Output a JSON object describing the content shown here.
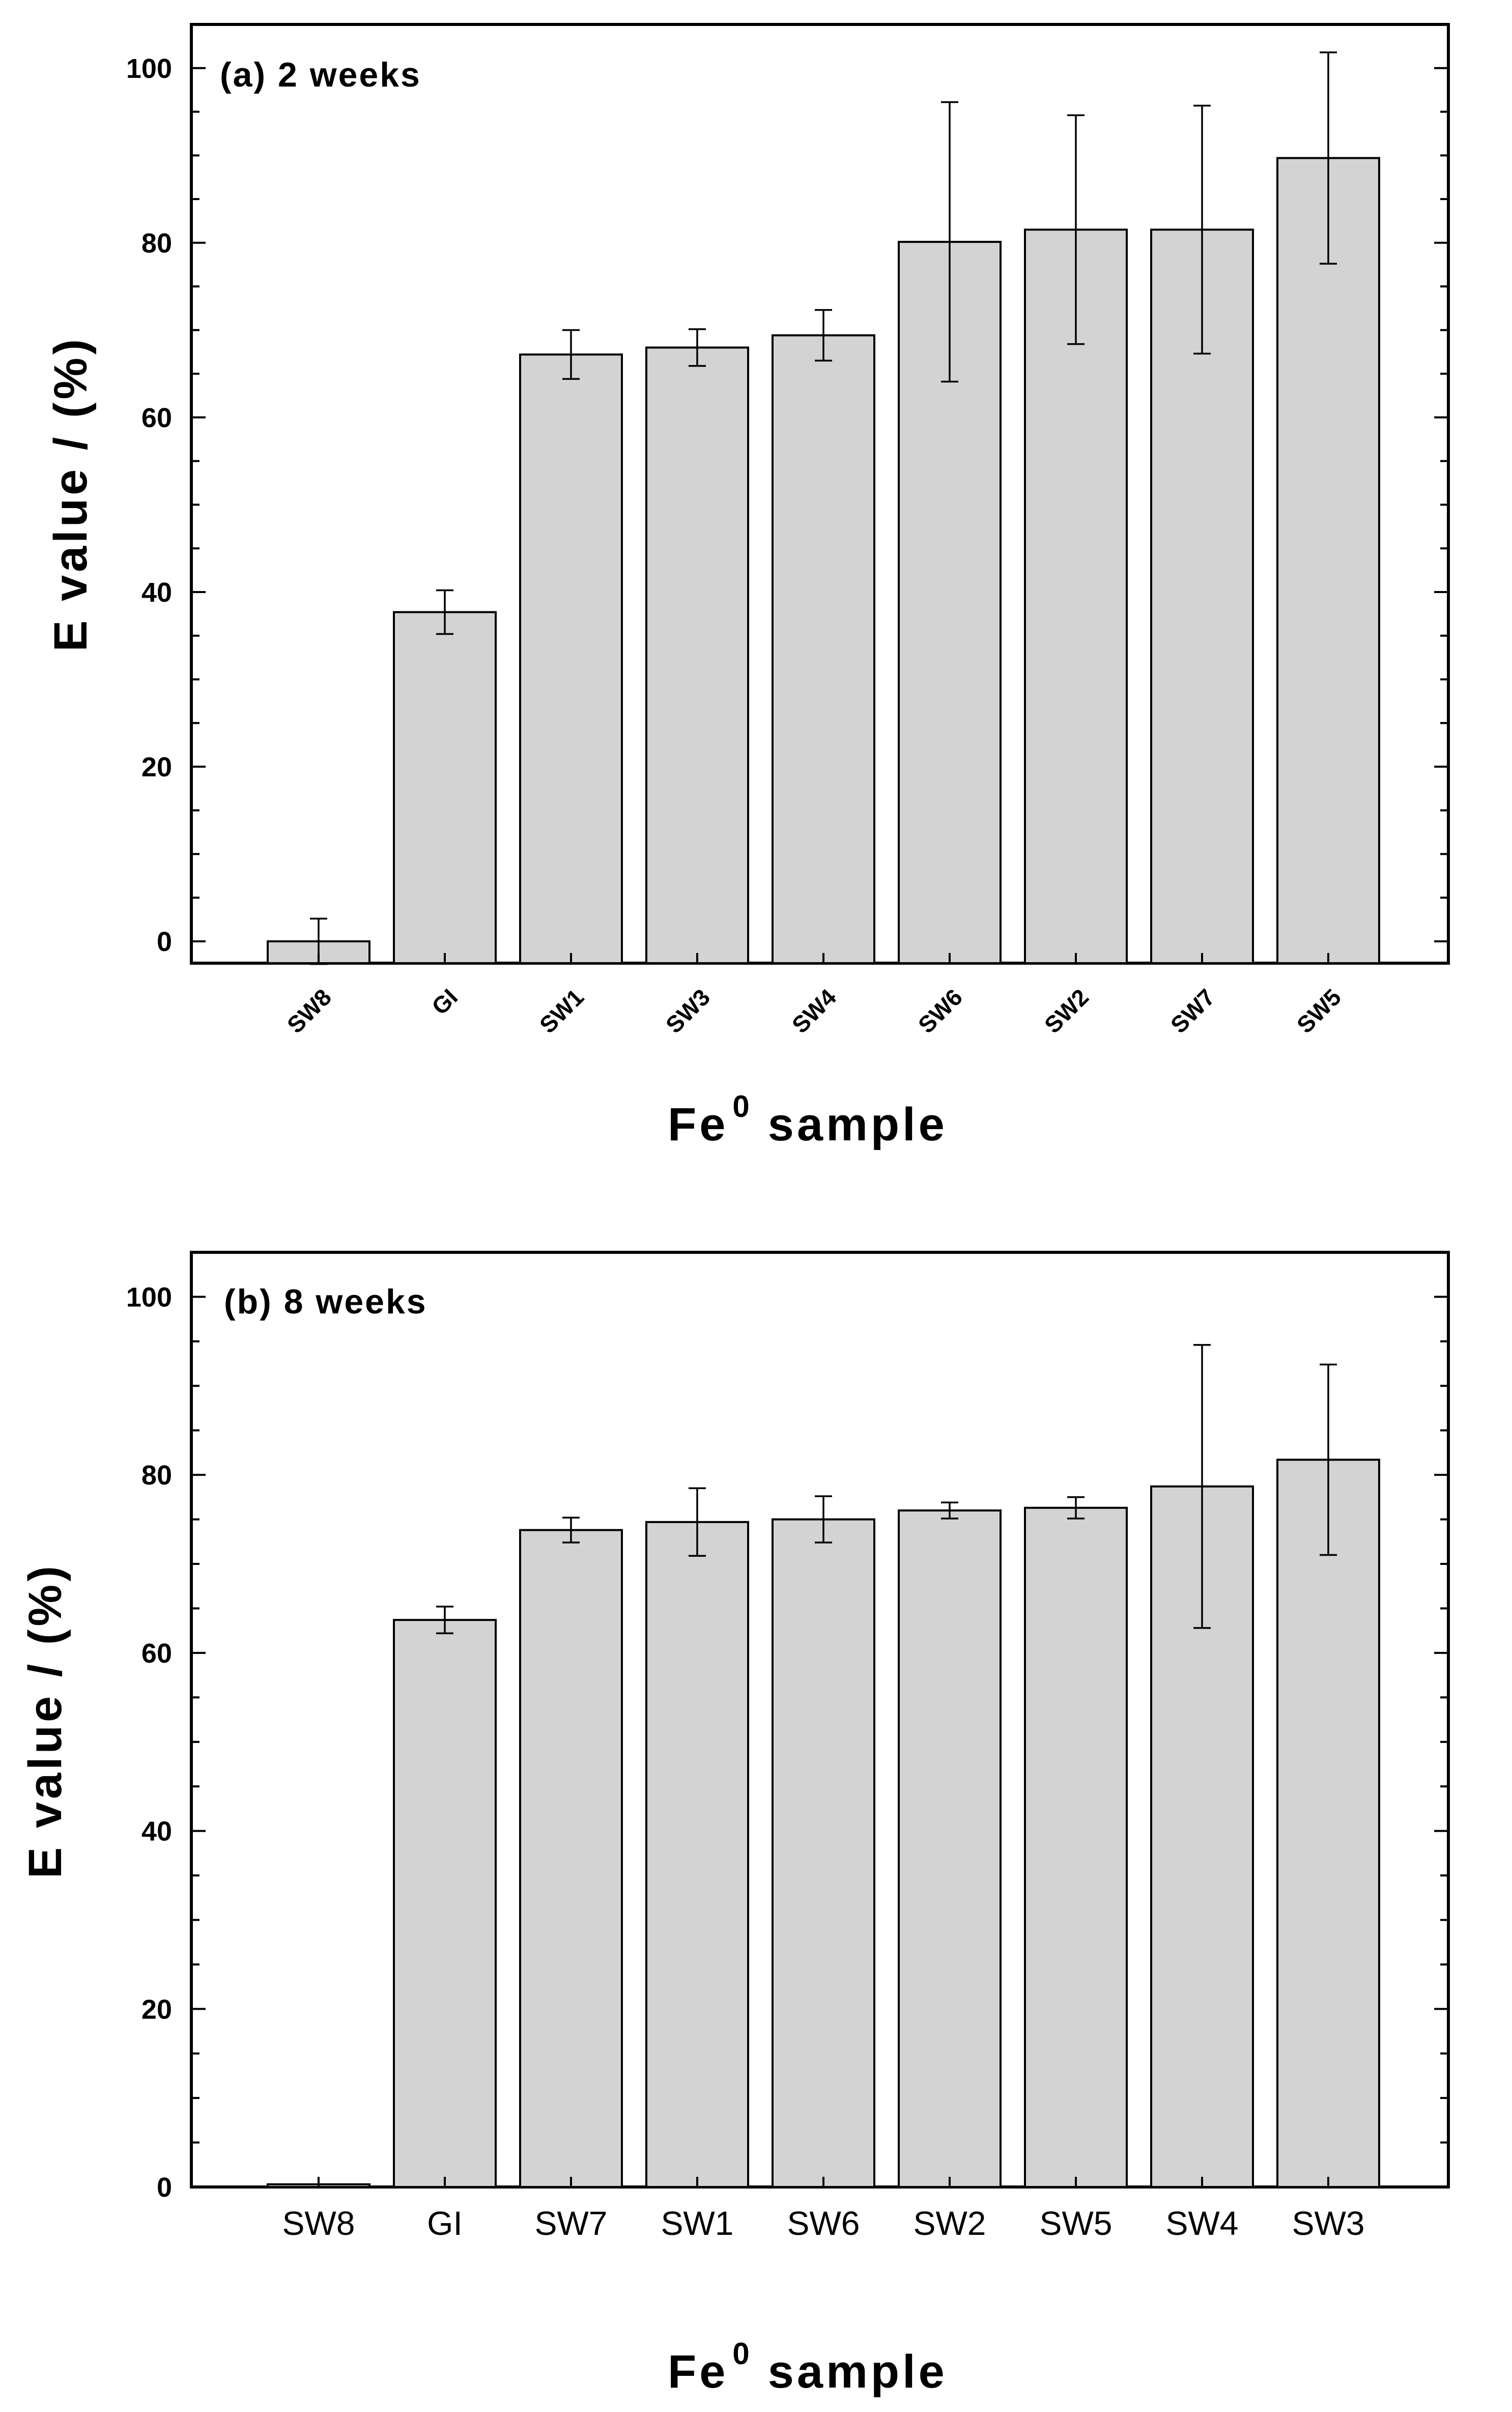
{
  "chart_data": [
    {
      "type": "bar",
      "title": "(a) 2 weeks",
      "xlabel": "Fe",
      "xlabel_superscript": "0",
      "xlabel_suffix": "sample",
      "ylabel": "E value / (%)",
      "ylim": [
        -2.5,
        105
      ],
      "yticks": [
        "0",
        "20",
        "40",
        "60",
        "80",
        "100"
      ],
      "ytick_values": [
        0,
        20,
        40,
        60,
        80,
        100
      ],
      "tick_label_style": "rotated",
      "categories": [
        "SW8",
        "GI",
        "SW1",
        "SW3",
        "SW4",
        "SW6",
        "SW2",
        "SW7",
        "SW5"
      ],
      "values": [
        0.0,
        37.7,
        67.2,
        68.0,
        69.4,
        80.1,
        81.5,
        81.5,
        89.7
      ],
      "errors": [
        2.6,
        2.5,
        2.8,
        2.1,
        2.9,
        16.0,
        13.1,
        14.2,
        12.1
      ],
      "grid": false
    },
    {
      "type": "bar",
      "title": "(b) 8 weeks",
      "xlabel": "Fe",
      "xlabel_superscript": "0",
      "xlabel_suffix": "sample",
      "ylabel": "E value / (%)",
      "ylim": [
        0,
        105
      ],
      "yticks": [
        "0",
        "20",
        "40",
        "60",
        "80",
        "100"
      ],
      "ytick_values": [
        0,
        20,
        40,
        60,
        80,
        100
      ],
      "tick_label_style": "horizontal",
      "categories": [
        "SW8",
        "GI",
        "SW7",
        "SW1",
        "SW6",
        "SW2",
        "SW5",
        "SW4",
        "SW3"
      ],
      "values": [
        0.3,
        63.7,
        73.8,
        74.7,
        75.0,
        76.0,
        76.3,
        78.7,
        81.7
      ],
      "errors": [
        0.0,
        1.5,
        1.4,
        3.8,
        2.6,
        0.9,
        1.2,
        15.9,
        10.7
      ],
      "grid": false
    }
  ]
}
